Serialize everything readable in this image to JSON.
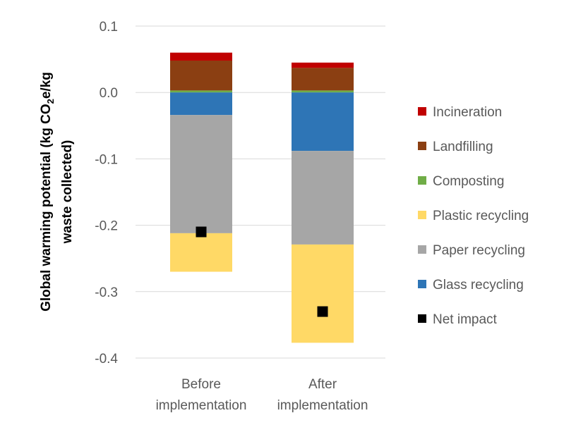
{
  "chart_data": {
    "type": "bar",
    "stacked": true,
    "categories": [
      "Before implementation",
      "After implementation"
    ],
    "category_lines": [
      [
        "Before",
        "implementation"
      ],
      [
        "After",
        "implementation"
      ]
    ],
    "ylabel_lines": [
      "Global warming potential (kg CO",
      "2",
      "e/kg",
      "waste collected)"
    ],
    "ylim": [
      -0.4,
      0.1
    ],
    "yticks": [
      0.1,
      0.0,
      -0.1,
      -0.2,
      -0.3,
      -0.4
    ],
    "ytick_labels": [
      "0.1",
      "0.0",
      "-0.1",
      "-0.2",
      "-0.3",
      "-0.4"
    ],
    "grid": true,
    "legend_position": "right",
    "series": [
      {
        "name": "Incineration",
        "color": "#c00000",
        "values": [
          0.012,
          0.008
        ]
      },
      {
        "name": "Landfilling",
        "color": "#8b3f12",
        "values": [
          0.045,
          0.034
        ]
      },
      {
        "name": "Composting",
        "color": "#70ad47",
        "values": [
          0.003,
          0.003
        ]
      },
      {
        "name": "Plastic recycling",
        "color": "#ffd966",
        "values": [
          -0.058,
          -0.148
        ]
      },
      {
        "name": "Paper recycling",
        "color": "#a6a6a6",
        "values": [
          -0.178,
          -0.141
        ]
      },
      {
        "name": "Glass recycling",
        "color": "#2e75b6",
        "values": [
          -0.034,
          -0.088
        ]
      }
    ],
    "positive_stack_order": [
      "Composting",
      "Landfilling",
      "Incineration"
    ],
    "negative_stack_order": [
      "Glass recycling",
      "Paper recycling",
      "Plastic recycling"
    ],
    "net_impact": {
      "name": "Net impact",
      "color": "#000000",
      "values": [
        -0.21,
        -0.33
      ]
    },
    "legend_order": [
      "Incineration",
      "Landfilling",
      "Composting",
      "Plastic recycling",
      "Paper recycling",
      "Glass recycling",
      "Net impact"
    ]
  }
}
